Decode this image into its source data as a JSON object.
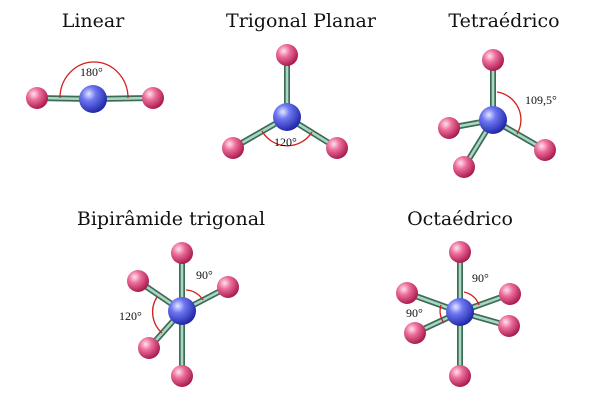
{
  "colors": {
    "central_atom": "#3b46e0",
    "outer_atom": "#e0487f",
    "bond": "#a9d8c2",
    "angle_arc": "#d41f1f"
  },
  "geometries": [
    {
      "id": "linear",
      "title": "Linear",
      "angles": [
        "180°"
      ]
    },
    {
      "id": "trigonal-planar",
      "title": "Trigonal Planar",
      "angles": [
        "120°"
      ]
    },
    {
      "id": "tetrahedral",
      "title": "Tetraédrico",
      "angles": [
        "109,5°"
      ]
    },
    {
      "id": "trigonal-bipyramidal",
      "title": "Bipirâmide trigonal",
      "angles": [
        "90°",
        "120°"
      ]
    },
    {
      "id": "octahedral",
      "title": "Octaédrico",
      "angles": [
        "90°",
        "90°"
      ]
    }
  ]
}
